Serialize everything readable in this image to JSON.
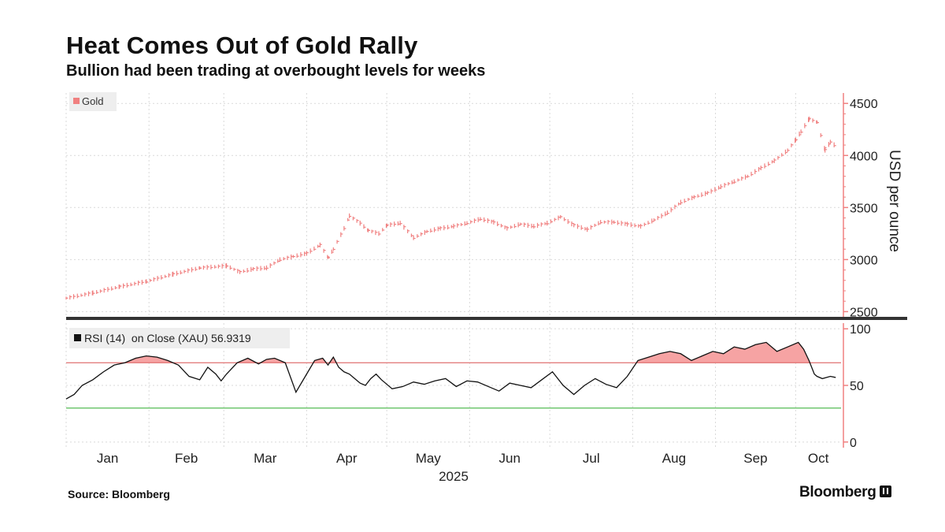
{
  "header": {
    "title": "Heat Comes Out of Gold Rally",
    "subtitle": "Bullion had been trading at overbought levels for weeks"
  },
  "footer": {
    "source": "Source: Bloomberg",
    "brand": "Bloomberg"
  },
  "colors": {
    "gold": "#f08080",
    "rsi_line": "#111111",
    "overbought": "#e07070",
    "oversold": "#55bb55",
    "overbought_fill": "#f6a3a3",
    "grid": "#d9d9d9",
    "divider": "#333333"
  },
  "chart_data": [
    {
      "type": "line",
      "name": "gold-price-panel",
      "legend": "Gold",
      "legend_position": "top-left",
      "ylabel": "USD per ounce",
      "ylim": [
        2450,
        4600
      ],
      "yticks": [
        2500,
        3000,
        3500,
        4000,
        4500
      ],
      "months": [
        "Jan",
        "Feb",
        "Mar",
        "Apr",
        "May",
        "Jun",
        "Jul",
        "Aug",
        "Sep",
        "Oct"
      ],
      "year_label": "2025",
      "x_day_range": [
        0,
        290
      ],
      "series": [
        {
          "name": "Gold",
          "x_day": [
            0,
            10,
            20,
            30,
            40,
            50,
            60,
            65,
            70,
            75,
            80,
            85,
            90,
            95,
            98,
            100,
            104,
            106,
            110,
            113,
            117,
            120,
            125,
            130,
            135,
            140,
            145,
            150,
            155,
            160,
            165,
            170,
            175,
            180,
            185,
            190,
            195,
            200,
            205,
            210,
            215,
            220,
            225,
            230,
            235,
            240,
            245,
            250,
            255,
            260,
            265,
            270,
            273,
            275,
            278,
            281,
            284,
            286,
            288
          ],
          "values": [
            2630,
            2680,
            2740,
            2790,
            2860,
            2920,
            2940,
            2880,
            2910,
            2920,
            3000,
            3030,
            3060,
            3140,
            3020,
            3100,
            3300,
            3420,
            3350,
            3280,
            3250,
            3330,
            3350,
            3210,
            3270,
            3300,
            3320,
            3350,
            3390,
            3360,
            3300,
            3340,
            3320,
            3350,
            3410,
            3330,
            3290,
            3360,
            3360,
            3340,
            3320,
            3380,
            3450,
            3550,
            3600,
            3640,
            3700,
            3750,
            3800,
            3880,
            3950,
            4050,
            4150,
            4230,
            4350,
            4320,
            4050,
            4130,
            4090
          ]
        }
      ]
    },
    {
      "type": "line",
      "name": "rsi-panel",
      "legend": "RSI (14)  on Close (XAU) 56.9319",
      "legend_position": "top-left",
      "ylim": [
        -5,
        105
      ],
      "yticks": [
        0,
        50,
        100
      ],
      "overbought": 70,
      "oversold": 30,
      "x_day_range": [
        0,
        290
      ],
      "series": [
        {
          "name": "RSI (14)",
          "x_day": [
            0,
            3,
            6,
            10,
            14,
            18,
            22,
            26,
            30,
            34,
            38,
            42,
            46,
            50,
            53,
            56,
            58,
            60,
            64,
            68,
            72,
            75,
            78,
            82,
            86,
            90,
            93,
            96,
            98,
            100,
            102,
            104,
            106,
            108,
            110,
            112,
            114,
            116,
            118,
            122,
            126,
            130,
            134,
            138,
            142,
            146,
            150,
            154,
            158,
            162,
            166,
            170,
            174,
            178,
            182,
            186,
            190,
            194,
            198,
            202,
            206,
            210,
            214,
            218,
            222,
            226,
            230,
            234,
            238,
            242,
            246,
            250,
            254,
            258,
            262,
            266,
            270,
            274,
            276,
            278,
            280,
            281,
            283,
            286,
            288
          ],
          "values": [
            38,
            42,
            50,
            55,
            62,
            68,
            70,
            74,
            76,
            75,
            72,
            68,
            58,
            55,
            66,
            60,
            54,
            60,
            70,
            74,
            69,
            73,
            74,
            70,
            44,
            60,
            72,
            74,
            68,
            75,
            66,
            62,
            60,
            56,
            52,
            50,
            56,
            60,
            55,
            47,
            49,
            53,
            51,
            54,
            56,
            49,
            54,
            53,
            49,
            45,
            52,
            50,
            48,
            55,
            62,
            50,
            42,
            50,
            56,
            51,
            48,
            58,
            72,
            75,
            78,
            80,
            78,
            72,
            76,
            80,
            78,
            84,
            82,
            86,
            88,
            80,
            84,
            88,
            82,
            72,
            60,
            58,
            56,
            58,
            57
          ]
        }
      ]
    }
  ]
}
